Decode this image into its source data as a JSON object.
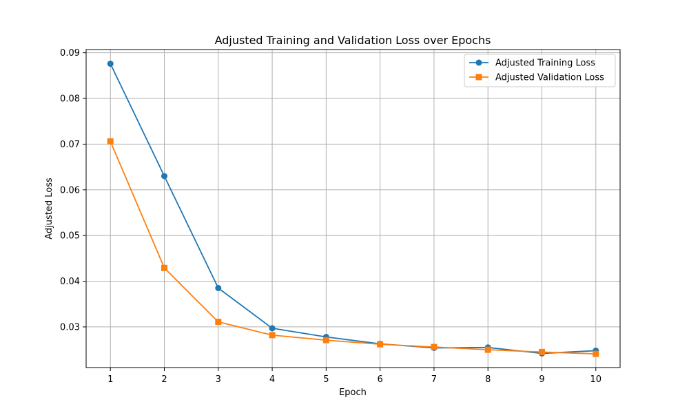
{
  "chart_data": {
    "type": "line",
    "title": "Adjusted Training and Validation Loss over Epochs",
    "xlabel": "Epoch",
    "ylabel": "Adjusted Loss",
    "x": [
      1,
      2,
      3,
      4,
      5,
      6,
      7,
      8,
      9,
      10
    ],
    "xlim": [
      0.55,
      10.45
    ],
    "ylim": [
      0.0211,
      0.0907
    ],
    "xticks": [
      "1",
      "2",
      "3",
      "4",
      "5",
      "6",
      "7",
      "8",
      "9",
      "10"
    ],
    "yticks": [
      "0.03",
      "0.04",
      "0.05",
      "0.06",
      "0.07",
      "0.08",
      "0.09"
    ],
    "grid": true,
    "legend_position": "top-right",
    "series": [
      {
        "name": "Adjusted Training Loss",
        "color": "#1f77b4",
        "marker": "circle",
        "values": [
          0.0876,
          0.063,
          0.0385,
          0.0297,
          0.0278,
          0.0263,
          0.0254,
          0.0255,
          0.0242,
          0.0248
        ]
      },
      {
        "name": "Adjusted Validation Loss",
        "color": "#ff7f0e",
        "marker": "square",
        "values": [
          0.0706,
          0.0429,
          0.0311,
          0.0282,
          0.0271,
          0.0262,
          0.0256,
          0.025,
          0.0245,
          0.0241
        ]
      }
    ]
  }
}
